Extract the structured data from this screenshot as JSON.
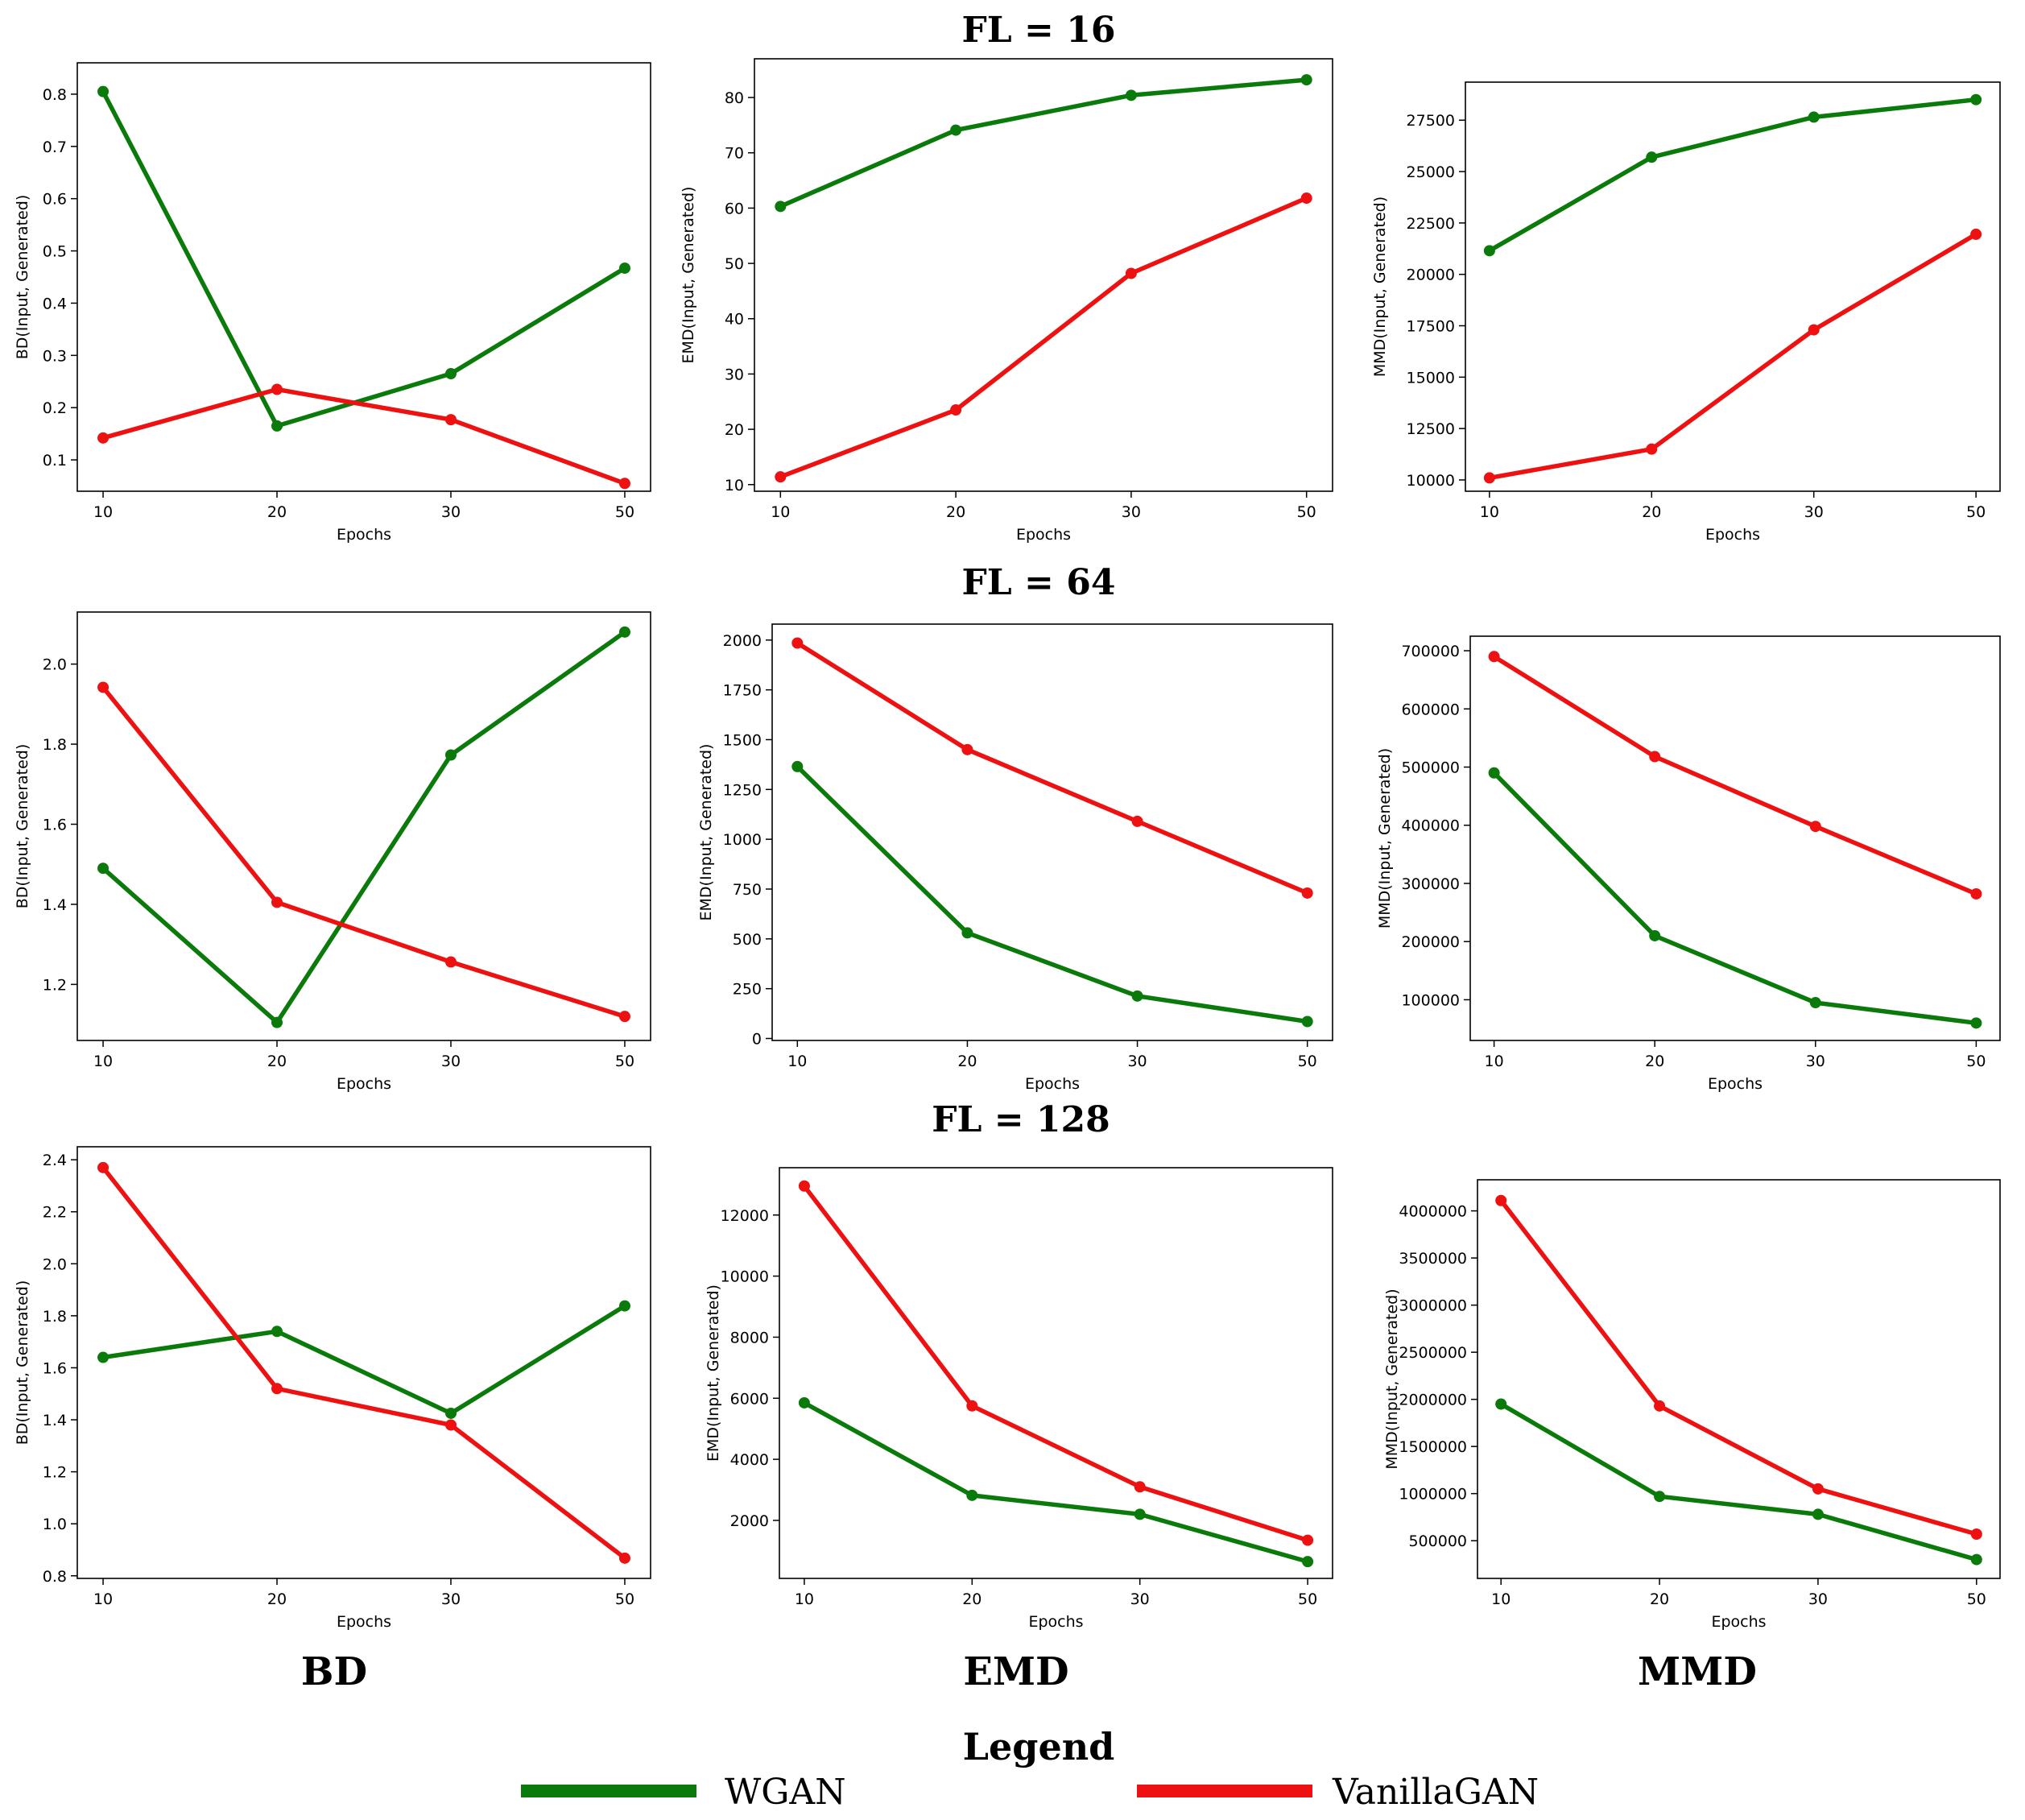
{
  "colors": {
    "WGAN": "#0a7a0a",
    "VanillaGAN": "#ee1111"
  },
  "row_titles": [
    "FL = 16",
    "FL = 64",
    "FL = 128"
  ],
  "col_titles": [
    "BD",
    "EMD",
    "MMD"
  ],
  "legend": {
    "title": "Legend",
    "entries": [
      {
        "name": "WGAN",
        "color": "#0a7a0a"
      },
      {
        "name": "VanillaGAN",
        "color": "#ee1111"
      }
    ]
  },
  "chart_data": [
    {
      "id": "bd16",
      "type": "line",
      "row_title": "FL = 16",
      "metric": "BD",
      "xlabel": "Epochs",
      "ylabel": "BD(Input, Generated)",
      "categories": [
        "10",
        "20",
        "30",
        "50"
      ],
      "ylim": [
        0.04,
        0.86
      ],
      "yticks": [
        0.1,
        0.2,
        0.3,
        0.4,
        0.5,
        0.6,
        0.7,
        0.8
      ],
      "ytick_labels": [
        "0.1",
        "0.2",
        "0.3",
        "0.4",
        "0.5",
        "0.6",
        "0.7",
        "0.8"
      ],
      "series": [
        {
          "name": "WGAN",
          "values": [
            0.805,
            0.165,
            0.265,
            0.467
          ]
        },
        {
          "name": "VanillaGAN",
          "values": [
            0.142,
            0.235,
            0.177,
            0.055
          ]
        }
      ]
    },
    {
      "id": "emd16",
      "type": "line",
      "metric": "EMD",
      "xlabel": "Epochs",
      "ylabel": "EMD(Input, Generated)",
      "categories": [
        "10",
        "20",
        "30",
        "50"
      ],
      "ylim": [
        8.8,
        87
      ],
      "yticks": [
        10,
        20,
        30,
        40,
        50,
        60,
        70,
        80
      ],
      "ytick_labels": [
        "10",
        "20",
        "30",
        "40",
        "50",
        "60",
        "70",
        "80"
      ],
      "series": [
        {
          "name": "WGAN",
          "values": [
            60.3,
            74.1,
            80.4,
            83.2
          ]
        },
        {
          "name": "VanillaGAN",
          "values": [
            11.4,
            23.5,
            48.2,
            61.8
          ]
        }
      ]
    },
    {
      "id": "mmd16",
      "type": "line",
      "metric": "MMD",
      "xlabel": "Epochs",
      "ylabel": "MMD(Input, Generated)",
      "categories": [
        "10",
        "20",
        "30",
        "50"
      ],
      "ylim": [
        9450,
        29350
      ],
      "yticks": [
        10000,
        12500,
        15000,
        17500,
        20000,
        22500,
        25000,
        27500
      ],
      "ytick_labels": [
        "10000",
        "12500",
        "15000",
        "17500",
        "20000",
        "22500",
        "25000",
        "27500"
      ],
      "series": [
        {
          "name": "WGAN",
          "values": [
            21150,
            25700,
            27650,
            28500
          ]
        },
        {
          "name": "VanillaGAN",
          "values": [
            10100,
            11500,
            17300,
            21950
          ]
        }
      ]
    },
    {
      "id": "bd64",
      "type": "line",
      "row_title": "FL = 64",
      "metric": "BD",
      "xlabel": "Epochs",
      "ylabel": "BD(Input, Generated)",
      "categories": [
        "10",
        "20",
        "30",
        "50"
      ],
      "ylim": [
        1.06,
        2.13
      ],
      "yticks": [
        1.2,
        1.4,
        1.6,
        1.8,
        2.0
      ],
      "ytick_labels": [
        "1.2",
        "1.4",
        "1.6",
        "1.8",
        "2.0"
      ],
      "series": [
        {
          "name": "WGAN",
          "values": [
            1.49,
            1.105,
            1.773,
            2.08
          ]
        },
        {
          "name": "VanillaGAN",
          "values": [
            1.942,
            1.405,
            1.256,
            1.12
          ]
        }
      ]
    },
    {
      "id": "emd64",
      "type": "line",
      "metric": "EMD",
      "xlabel": "Epochs",
      "ylabel": "EMD(Input, Generated)",
      "categories": [
        "10",
        "20",
        "30",
        "50"
      ],
      "ylim": [
        -10,
        2080
      ],
      "yticks": [
        0,
        250,
        500,
        750,
        1000,
        1250,
        1500,
        1750,
        2000
      ],
      "ytick_labels": [
        "0",
        "250",
        "500",
        "750",
        "1000",
        "1250",
        "1500",
        "1750",
        "2000"
      ],
      "series": [
        {
          "name": "WGAN",
          "values": [
            1365,
            530,
            213,
            85
          ]
        },
        {
          "name": "VanillaGAN",
          "values": [
            1985,
            1450,
            1090,
            730
          ]
        }
      ]
    },
    {
      "id": "mmd64",
      "type": "line",
      "metric": "MMD",
      "xlabel": "Epochs",
      "ylabel": "MMD(Input, Generated)",
      "categories": [
        "10",
        "20",
        "30",
        "50"
      ],
      "ylim": [
        30000,
        725000
      ],
      "yticks": [
        100000,
        200000,
        300000,
        400000,
        500000,
        600000,
        700000
      ],
      "ytick_labels": [
        "100000",
        "200000",
        "300000",
        "400000",
        "500000",
        "600000",
        "700000"
      ],
      "series": [
        {
          "name": "WGAN",
          "values": [
            490000,
            210000,
            95000,
            60000
          ]
        },
        {
          "name": "VanillaGAN",
          "values": [
            690000,
            518000,
            398000,
            282000
          ]
        }
      ]
    },
    {
      "id": "bd128",
      "type": "line",
      "row_title": "FL = 128",
      "metric": "BD",
      "xlabel": "Epochs",
      "ylabel": "BD(Input, Generated)",
      "categories": [
        "10",
        "20",
        "30",
        "50"
      ],
      "ylim": [
        0.79,
        2.45
      ],
      "yticks": [
        0.8,
        1.0,
        1.2,
        1.4,
        1.6,
        1.8,
        2.0,
        2.2,
        2.4
      ],
      "ytick_labels": [
        "0.8",
        "1.0",
        "1.2",
        "1.4",
        "1.6",
        "1.8",
        "2.0",
        "2.2",
        "2.4"
      ],
      "series": [
        {
          "name": "WGAN",
          "values": [
            1.64,
            1.74,
            1.425,
            1.838
          ]
        },
        {
          "name": "VanillaGAN",
          "values": [
            2.37,
            1.52,
            1.38,
            0.868
          ]
        }
      ]
    },
    {
      "id": "emd128",
      "type": "line",
      "metric": "EMD",
      "xlabel": "Epochs",
      "ylabel": "EMD(Input, Generated)",
      "categories": [
        "10",
        "20",
        "30",
        "50"
      ],
      "ylim": [
        100,
        13550
      ],
      "yticks": [
        2000,
        4000,
        6000,
        8000,
        10000,
        12000
      ],
      "ytick_labels": [
        "2000",
        "4000",
        "6000",
        "8000",
        "10000",
        "12000"
      ],
      "series": [
        {
          "name": "WGAN",
          "values": [
            5850,
            2820,
            2200,
            650
          ]
        },
        {
          "name": "VanillaGAN",
          "values": [
            12950,
            5750,
            3100,
            1350
          ]
        }
      ]
    },
    {
      "id": "mmd128",
      "type": "line",
      "metric": "MMD",
      "xlabel": "Epochs",
      "ylabel": "MMD(Input, Generated)",
      "categories": [
        "10",
        "20",
        "30",
        "50"
      ],
      "ylim": [
        100000,
        4330000
      ],
      "yticks": [
        500000,
        1000000,
        1500000,
        2000000,
        2500000,
        3000000,
        3500000,
        4000000
      ],
      "ytick_labels": [
        "500000",
        "1000000",
        "1500000",
        "2000000",
        "2500000",
        "3000000",
        "3500000",
        "4000000"
      ],
      "series": [
        {
          "name": "WGAN",
          "values": [
            1950000,
            970000,
            780000,
            300000
          ]
        },
        {
          "name": "VanillaGAN",
          "values": [
            4110000,
            1930000,
            1050000,
            570000
          ]
        }
      ]
    }
  ]
}
